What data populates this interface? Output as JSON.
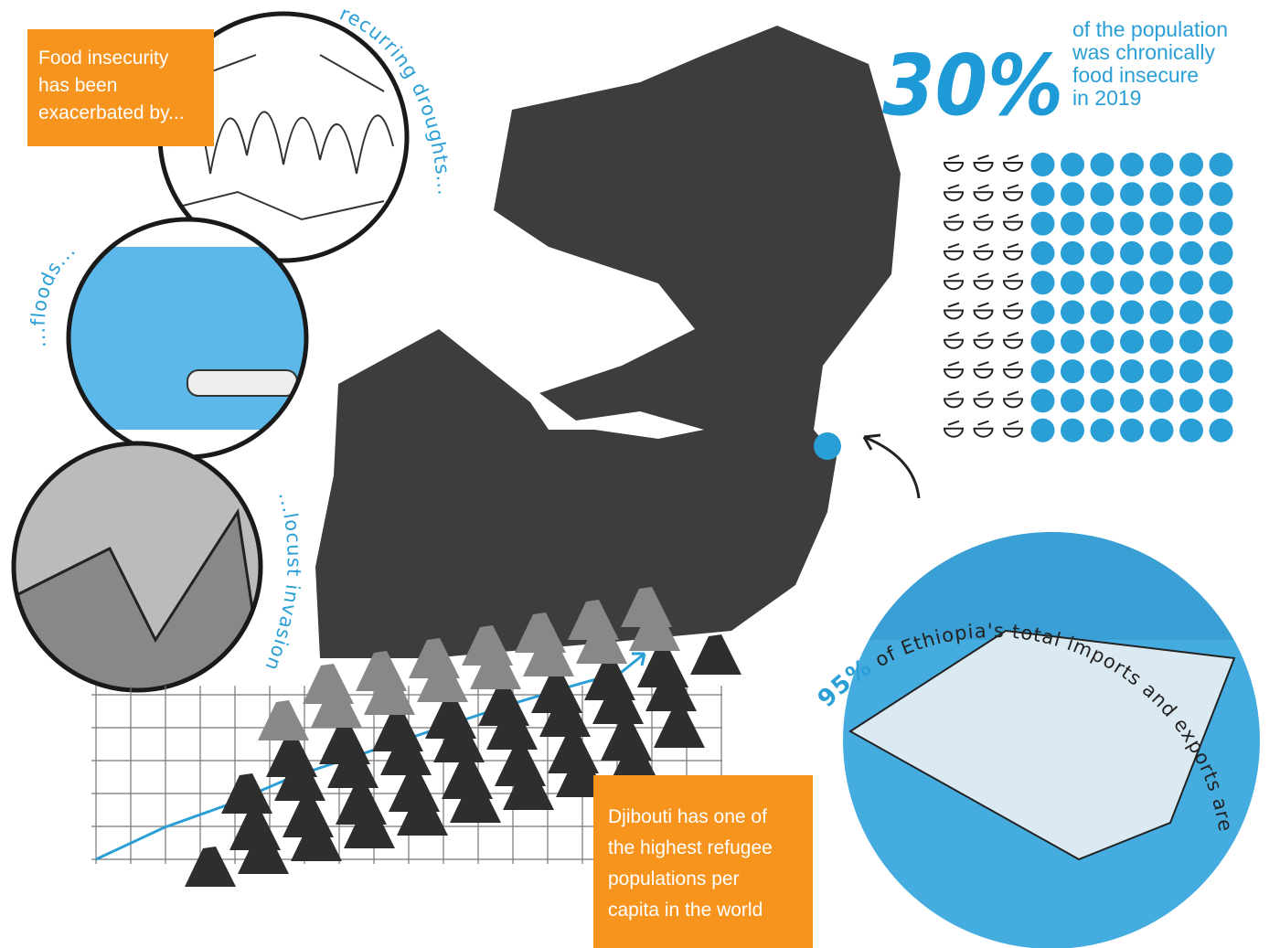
{
  "intro": {
    "lines": [
      "Food insecurity",
      "has been",
      "exacerbated by..."
    ]
  },
  "causes": [
    "recurring droughts...",
    "...floods...",
    "...locust invasions"
  ],
  "stat": {
    "value": 30,
    "label": "30%",
    "lines": [
      "of the population",
      "was chronically",
      "food insecure",
      "in 2019"
    ]
  },
  "port": {
    "label": "95%",
    "text": " of Ethiopia's total imports and exports are shipped through the port of Djibouti!"
  },
  "refugees": {
    "lines": [
      "Djibouti has one of",
      "the  highest refugee",
      "populations per",
      "capita in the world"
    ]
  }
}
